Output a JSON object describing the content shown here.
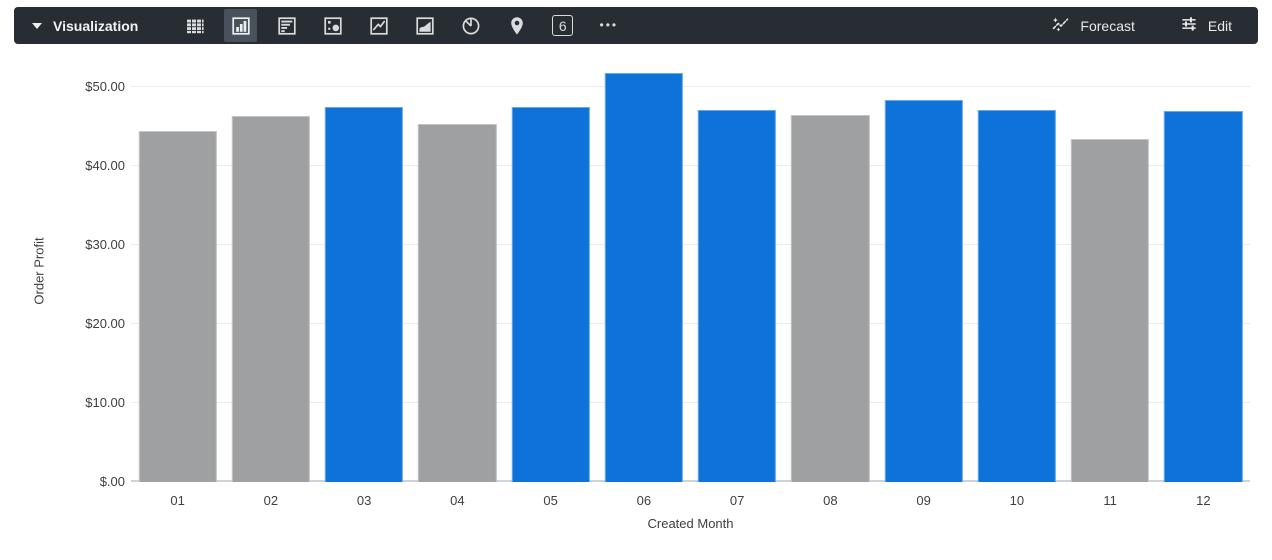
{
  "toolbar": {
    "visualization_label": "Visualization",
    "forecast_label": "Forecast",
    "edit_label": "Edit",
    "single_value_glyph": "6",
    "more_glyph": "•••"
  },
  "colors": {
    "toolbar_bg": "#272d33",
    "selected_type_bg": "#49525a",
    "icon": "#d9dcde",
    "bar_blue": "#0d72d9",
    "bar_gray": "#9fa0a1",
    "gridline": "#ebebeb",
    "axis_line": "#ccd3da",
    "tick_text": "#3c4043"
  },
  "chart_data": {
    "type": "bar",
    "title": "",
    "xlabel": "Created Month",
    "ylabel": "Order Profit",
    "categories": [
      "01",
      "02",
      "03",
      "04",
      "05",
      "06",
      "07",
      "08",
      "09",
      "10",
      "11",
      "12"
    ],
    "values": [
      44.4,
      46.3,
      47.4,
      45.3,
      47.5,
      51.8,
      47.1,
      46.5,
      48.4,
      47.1,
      43.4,
      47.0
    ],
    "bar_color_keys": [
      "gray",
      "gray",
      "blue",
      "gray",
      "blue",
      "blue",
      "blue",
      "gray",
      "blue",
      "blue",
      "gray",
      "blue"
    ],
    "palette": {
      "blue": "#0d72d9",
      "gray": "#9fa0a1"
    },
    "y_ticks": [
      {
        "label": "$50.00",
        "value": 50
      },
      {
        "label": "$40.00",
        "value": 40
      },
      {
        "label": "$30.00",
        "value": 30
      },
      {
        "label": "$20.00",
        "value": 20
      },
      {
        "label": "$10.00",
        "value": 10
      },
      {
        "label": "$.00",
        "value": 0
      }
    ],
    "ylim": [
      0,
      53.4
    ],
    "grid": true,
    "legend": "none"
  }
}
